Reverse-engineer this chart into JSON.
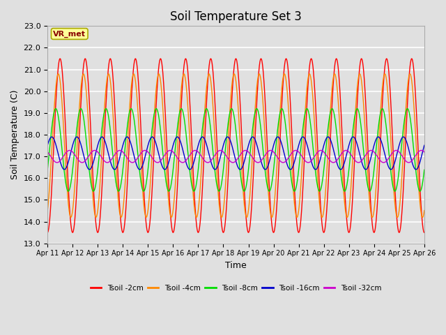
{
  "title": "Soil Temperature Set 3",
  "xlabel": "Time",
  "ylabel": "Soil Temperature (C)",
  "ylim": [
    13.0,
    23.0
  ],
  "yticks": [
    13.0,
    14.0,
    15.0,
    16.0,
    17.0,
    18.0,
    19.0,
    20.0,
    21.0,
    22.0,
    23.0
  ],
  "num_points": 1500,
  "series": [
    {
      "label": "Tsoil -2cm",
      "color": "#FF0000",
      "amplitude": 4.0,
      "mean": 17.5,
      "period": 1.0,
      "phase": 0.0,
      "trend": 0.0
    },
    {
      "label": "Tsoil -4cm",
      "color": "#FF8800",
      "amplitude": 3.3,
      "mean": 17.5,
      "period": 1.0,
      "phase": 0.07,
      "trend": 0.0
    },
    {
      "label": "Tsoil -8cm",
      "color": "#00DD00",
      "amplitude": 1.9,
      "mean": 17.3,
      "period": 1.0,
      "phase": 0.17,
      "trend": 0.0
    },
    {
      "label": "Tsoil -16cm",
      "color": "#0000CC",
      "amplitude": 0.75,
      "mean": 17.15,
      "period": 1.0,
      "phase": 0.33,
      "trend": 0.0
    },
    {
      "label": "Tsoil -32cm",
      "color": "#CC00CC",
      "amplitude": 0.28,
      "mean": 17.0,
      "period": 1.0,
      "phase": 0.62,
      "trend": 0.0
    }
  ],
  "xtick_labels": [
    "Apr 11",
    "Apr 12",
    "Apr 13",
    "Apr 14",
    "Apr 15",
    "Apr 16",
    "Apr 17",
    "Apr 18",
    "Apr 19",
    "Apr 20",
    "Apr 21",
    "Apr 22",
    "Apr 23",
    "Apr 24",
    "Apr 25",
    "Apr 26"
  ],
  "legend_label": "VR_met",
  "background_color": "#E0E0E0",
  "plot_bg_color": "#E0E0E0",
  "grid_color": "#FFFFFF",
  "title_fontsize": 12,
  "axis_fontsize": 8,
  "label_fontsize": 9,
  "legend_box_color": "#FFFF99",
  "legend_box_edge": "#AAAA00",
  "legend_text_color": "#880000"
}
